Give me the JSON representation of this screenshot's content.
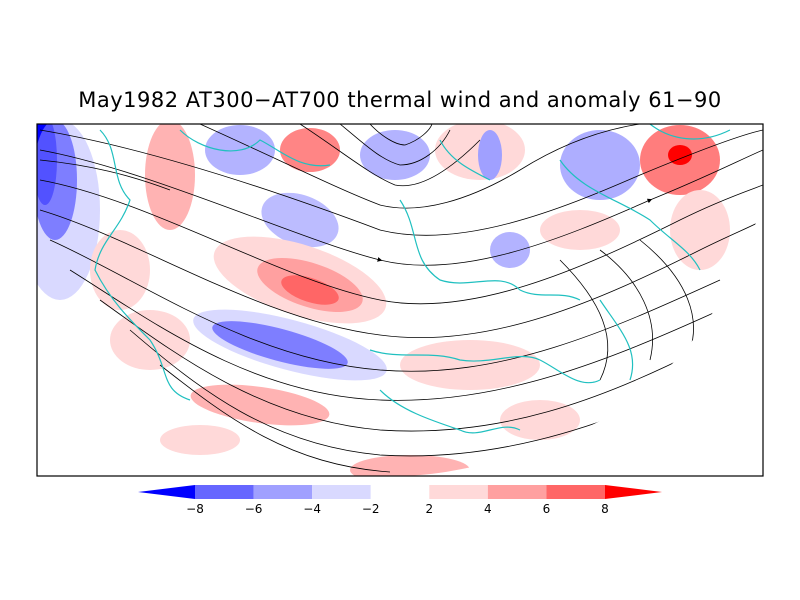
{
  "title": "May1982 AT300−AT700 thermal wind and anomaly 61−90",
  "colorbar": {
    "bins": [
      {
        "lo": null,
        "hi": -8,
        "color": "#0000ff"
      },
      {
        "lo": -8,
        "hi": -6,
        "color": "#6666ff"
      },
      {
        "lo": -6,
        "hi": -4,
        "color": "#a0a0ff"
      },
      {
        "lo": -4,
        "hi": -2,
        "color": "#d9d9ff"
      },
      {
        "lo": -2,
        "hi": 2,
        "color": "#ffffff"
      },
      {
        "lo": 2,
        "hi": 4,
        "color": "#ffd9d9"
      },
      {
        "lo": 4,
        "hi": 6,
        "color": "#ffa0a0"
      },
      {
        "lo": 6,
        "hi": 8,
        "color": "#ff6666"
      },
      {
        "lo": 8,
        "hi": null,
        "color": "#ff0000"
      }
    ],
    "tick_labels": [
      "−8",
      "−6",
      "−4",
      "−2",
      "2",
      "4",
      "6",
      "8"
    ]
  },
  "colors": {
    "coastline": "#20c0c0",
    "streamline": "#000000",
    "frame": "#000000"
  }
}
